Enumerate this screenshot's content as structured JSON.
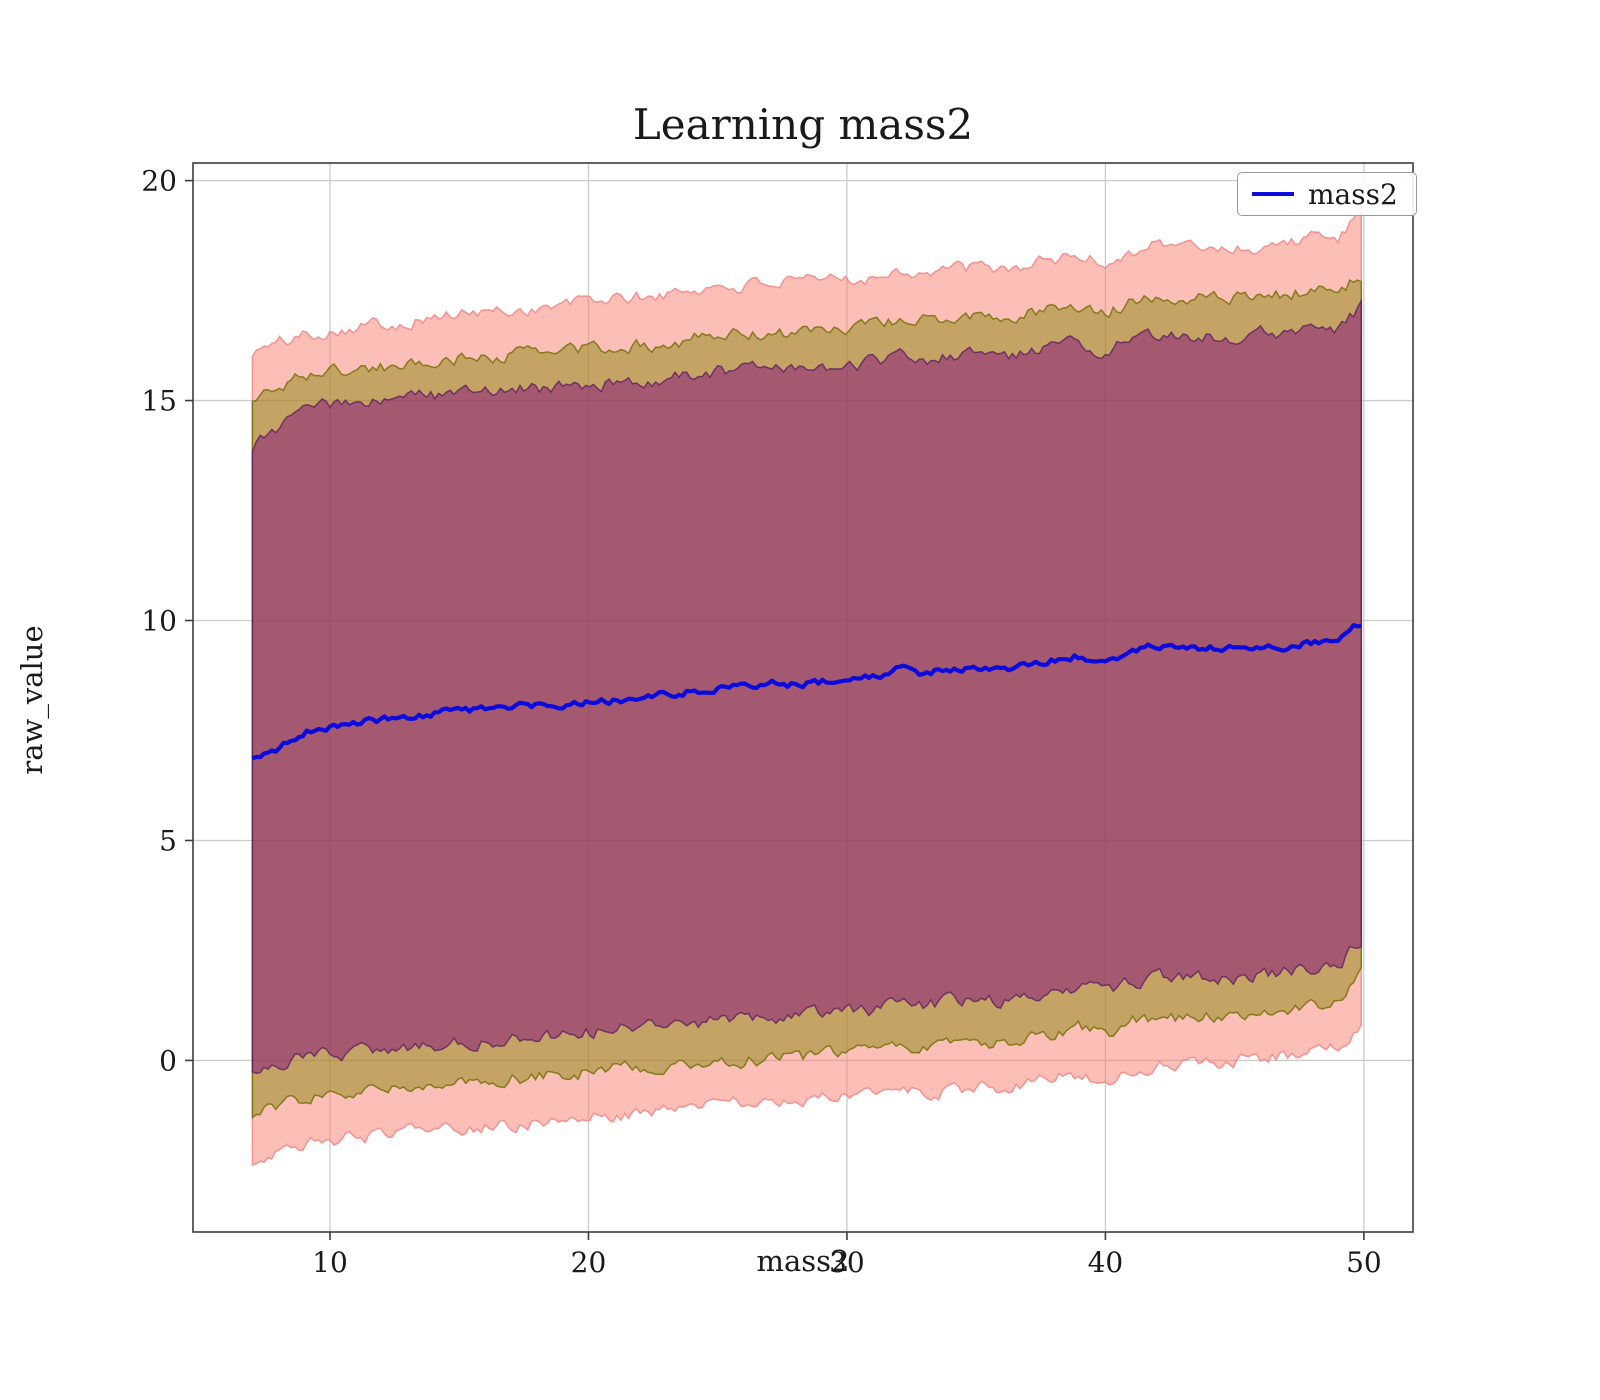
{
  "chart_data": {
    "type": "line",
    "title": "Learning mass2",
    "xlabel": "mass2",
    "ylabel": "raw_value",
    "xlim": [
      4.7,
      51.9
    ],
    "ylim": [
      -3.9,
      20.4
    ],
    "xticks": [
      10,
      20,
      30,
      40,
      50
    ],
    "yticks": [
      0,
      5,
      10,
      15,
      20
    ],
    "grid": true,
    "legend_position": "upper right",
    "legend": [
      "mass2"
    ],
    "x": [
      7,
      8,
      9,
      10,
      11,
      12,
      13,
      14,
      15,
      16,
      17,
      18,
      19,
      20,
      21,
      22,
      23,
      24,
      25,
      26,
      27,
      28,
      29,
      30,
      31,
      32,
      33,
      34,
      35,
      36,
      37,
      38,
      39,
      40,
      41,
      42,
      43,
      44,
      45,
      46,
      47,
      48,
      49,
      50
    ],
    "series": [
      {
        "name": "mass2",
        "color": "#0b0bdd",
        "values": [
          6.8,
          7.1,
          7.5,
          7.6,
          7.7,
          7.75,
          7.8,
          7.9,
          7.95,
          8.0,
          8.05,
          8.1,
          8.1,
          8.2,
          8.2,
          8.25,
          8.3,
          8.4,
          8.5,
          8.5,
          8.6,
          8.55,
          8.6,
          8.65,
          8.7,
          8.9,
          8.8,
          8.9,
          8.9,
          8.85,
          9.0,
          9.1,
          9.2,
          8.95,
          9.3,
          9.4,
          9.35,
          9.4,
          9.35,
          9.35,
          9.4,
          9.5,
          9.5,
          10.0
        ]
      }
    ],
    "bands": [
      {
        "name": "outer-band",
        "color": "#fa8072",
        "edge_color": "#f08080",
        "opacity": 0.5,
        "lower": [
          -2.3,
          -2.1,
          -1.9,
          -1.8,
          -1.75,
          -1.7,
          -1.65,
          -1.6,
          -1.55,
          -1.5,
          -1.45,
          -1.4,
          -1.35,
          -1.3,
          -1.25,
          -1.2,
          -1.15,
          -1.1,
          -1.0,
          -1.0,
          -0.95,
          -0.95,
          -0.9,
          -0.85,
          -0.8,
          -0.7,
          -0.75,
          -0.65,
          -0.6,
          -0.6,
          -0.5,
          -0.4,
          -0.3,
          -0.45,
          -0.2,
          -0.1,
          -0.1,
          -0.05,
          0.0,
          0.05,
          0.1,
          0.2,
          0.3,
          1.0
        ],
        "upper": [
          16.1,
          16.3,
          16.5,
          16.6,
          16.7,
          16.75,
          16.8,
          16.9,
          16.95,
          17.0,
          17.05,
          17.1,
          17.15,
          17.3,
          17.3,
          17.35,
          17.4,
          17.5,
          17.6,
          17.6,
          17.7,
          17.65,
          17.7,
          17.8,
          17.8,
          18.0,
          17.9,
          18.0,
          18.0,
          17.95,
          18.1,
          18.2,
          18.3,
          18.1,
          18.4,
          18.6,
          18.5,
          18.5,
          18.45,
          18.5,
          18.6,
          18.7,
          18.7,
          19.3
        ]
      },
      {
        "name": "middle-band",
        "color": "#808000",
        "edge_color": "#6e6e00",
        "opacity": 0.45,
        "lower": [
          -1.2,
          -1.0,
          -0.85,
          -0.8,
          -0.75,
          -0.7,
          -0.65,
          -0.6,
          -0.5,
          -0.45,
          -0.4,
          -0.35,
          -0.3,
          -0.25,
          -0.2,
          -0.15,
          -0.1,
          -0.05,
          0.0,
          0.0,
          0.05,
          0.05,
          0.1,
          0.15,
          0.2,
          0.35,
          0.3,
          0.4,
          0.45,
          0.4,
          0.55,
          0.65,
          0.75,
          0.55,
          0.85,
          1.0,
          0.95,
          1.0,
          1.0,
          1.05,
          1.1,
          1.2,
          1.3,
          2.0
        ],
        "upper": [
          15.0,
          15.3,
          15.6,
          15.65,
          15.7,
          15.75,
          15.8,
          15.9,
          15.95,
          16.0,
          16.05,
          16.1,
          16.1,
          16.2,
          16.2,
          16.25,
          16.3,
          16.4,
          16.45,
          16.5,
          16.55,
          16.5,
          16.6,
          16.65,
          16.7,
          16.85,
          16.8,
          16.9,
          16.9,
          16.85,
          17.0,
          17.1,
          17.2,
          17.0,
          17.25,
          17.4,
          17.35,
          17.4,
          17.35,
          17.35,
          17.4,
          17.5,
          17.5,
          17.9
        ]
      },
      {
        "name": "inner-band",
        "color": "#800080",
        "edge_color": "#5e2060",
        "opacity": 0.45,
        "lower": [
          -0.3,
          -0.1,
          0.1,
          0.15,
          0.2,
          0.25,
          0.3,
          0.35,
          0.4,
          0.45,
          0.5,
          0.55,
          0.6,
          0.65,
          0.7,
          0.75,
          0.8,
          0.85,
          0.9,
          0.95,
          1.0,
          1.0,
          1.05,
          1.1,
          1.15,
          1.3,
          1.25,
          1.35,
          1.4,
          1.35,
          1.5,
          1.6,
          1.7,
          1.5,
          1.75,
          1.9,
          1.85,
          1.9,
          1.9,
          1.95,
          2.0,
          2.1,
          2.15,
          2.8
        ],
        "upper": [
          13.9,
          14.4,
          14.8,
          14.9,
          14.95,
          15.0,
          15.05,
          15.1,
          15.15,
          15.2,
          15.25,
          15.3,
          15.3,
          15.4,
          15.4,
          15.45,
          15.5,
          15.6,
          15.65,
          15.65,
          15.75,
          15.7,
          15.75,
          15.8,
          15.85,
          16.0,
          15.95,
          16.0,
          16.05,
          16.0,
          16.1,
          16.2,
          16.3,
          16.1,
          16.4,
          16.5,
          16.45,
          16.5,
          16.45,
          16.5,
          16.55,
          16.65,
          16.65,
          17.2
        ]
      }
    ],
    "noise": {
      "line_amplitude": 0.07,
      "band_amplitude": 0.13
    }
  },
  "legend_box": {
    "label": "mass2"
  },
  "colors": {
    "line": "#0b0bdd",
    "grid": "#cccccc",
    "spine": "#3c3c3c"
  }
}
